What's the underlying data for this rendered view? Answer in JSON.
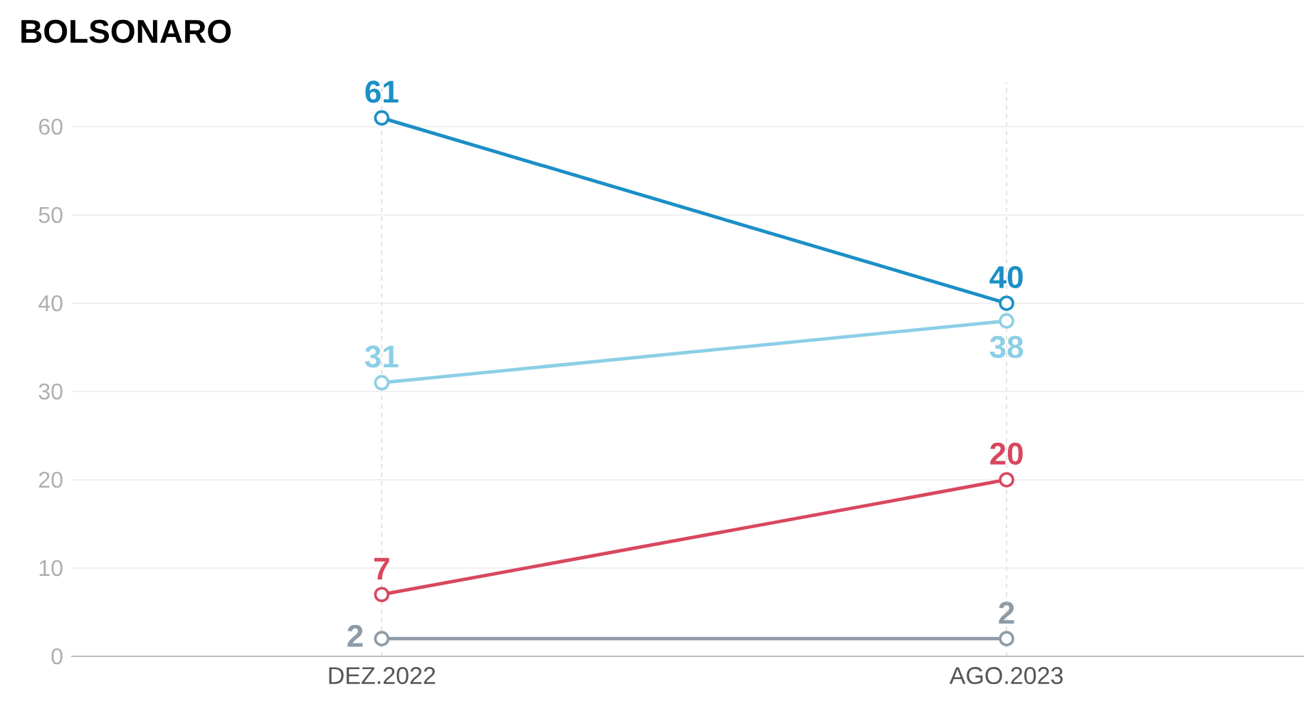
{
  "chart_data": {
    "type": "line",
    "title": "BOLSONARO",
    "categories": [
      "DEZ.2022",
      "AGO.2023"
    ],
    "series": [
      {
        "color": "#1b8fc6",
        "values": [
          61,
          40
        ]
      },
      {
        "color": "#8ccfe6",
        "values": [
          31,
          38
        ]
      },
      {
        "color": "#d8475f",
        "values": [
          7,
          20
        ]
      },
      {
        "color": "#8e9ba7",
        "values": [
          2,
          2
        ]
      }
    ],
    "ylim": [
      0,
      65
    ],
    "yticks": [
      0,
      10,
      20,
      30,
      40,
      50,
      60
    ],
    "grid": true,
    "marker": "circle",
    "data_labels": true
  }
}
